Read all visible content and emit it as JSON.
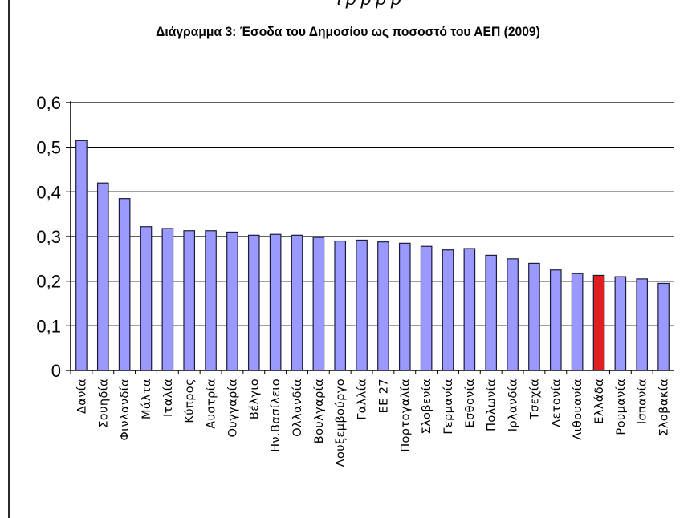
{
  "header": {
    "fragment": "ι ρ   ρ  ρ  ρ"
  },
  "chart_data": {
    "type": "bar",
    "title": "Διάγραμμα 3:  Έσοδα του Δημοσίου ως ποσοστό του ΑΕΠ (2009)",
    "xlabel": "",
    "ylabel": "",
    "ylim": [
      0,
      0.6
    ],
    "yticks": [
      "0",
      "0,1",
      "0,2",
      "0,3",
      "0,4",
      "0,5",
      "0,6"
    ],
    "grid": true,
    "legend": "none",
    "categories": [
      "Δανία",
      "Σουηδία",
      "Φινλανδία",
      "Μάλτα",
      "Ιταλία",
      "Κύπρος",
      "Αυστρία",
      "Ουγγαρία",
      "Βέλγιο",
      "Ην.Βασίλειο",
      "Ολλανδία",
      "Βουλγαρία",
      "Λουξεμβούργο",
      "Γαλλία",
      "ΕΕ 27",
      "Πορτογαλία",
      "Σλοβενία",
      "Γερμανία",
      "Εσθονία",
      "Πολωνία",
      "Ιρλανδία",
      "Τσεχία",
      "Λετονία",
      "Λιθουανία",
      "Ελλάδα",
      "Ρουμανία",
      "Ισπανία",
      "Σλοβακία"
    ],
    "values": [
      0.515,
      0.42,
      0.385,
      0.322,
      0.318,
      0.313,
      0.313,
      0.31,
      0.303,
      0.305,
      0.303,
      0.298,
      0.29,
      0.292,
      0.288,
      0.285,
      0.278,
      0.27,
      0.273,
      0.258,
      0.25,
      0.24,
      0.225,
      0.217,
      0.213,
      0.21,
      0.205,
      0.195
    ],
    "colors": {
      "default_bar": "#9999ff",
      "highlight_bar": "#e02020",
      "bar_edge": "#1c1c3a",
      "gridline": "#000000"
    },
    "highlight_category": "Ελλάδα"
  }
}
